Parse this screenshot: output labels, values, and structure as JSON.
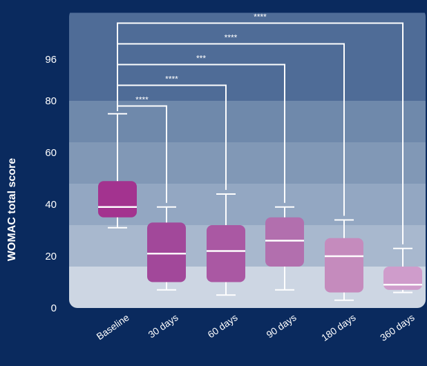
{
  "chart_data": {
    "type": "box",
    "ylabel": "WOMAC total score",
    "yticks": [
      0,
      20,
      40,
      60,
      80,
      96
    ],
    "ylim": [
      0,
      106
    ],
    "categories": [
      "Baseline",
      "30 days",
      "60 days",
      "90 days",
      "180 days",
      "360 days"
    ],
    "boxes": [
      {
        "category": "Baseline",
        "min": 31,
        "q1": 35,
        "median": 39,
        "q3": 49,
        "max": 75,
        "color": "#a3338f"
      },
      {
        "category": "30 days",
        "min": 7,
        "q1": 10,
        "median": 21,
        "q3": 33,
        "max": 39,
        "color": "#a2489a"
      },
      {
        "category": "60 days",
        "min": 5,
        "q1": 10,
        "median": 22,
        "q3": 32,
        "max": 44,
        "color": "#aa58a3"
      },
      {
        "category": "90 days",
        "min": 7,
        "q1": 16,
        "median": 26,
        "q3": 35,
        "max": 39,
        "color": "#b26fae"
      },
      {
        "category": "180 days",
        "min": 3,
        "q1": 6,
        "median": 20,
        "q3": 27,
        "max": 34,
        "color": "#c58bbd"
      },
      {
        "category": "360 days",
        "min": 6,
        "q1": 7,
        "median": 9,
        "q3": 16,
        "max": 23,
        "color": "#cf9ccb"
      }
    ],
    "comparisons": [
      {
        "from": "Baseline",
        "to": "30 days",
        "label": "****",
        "level": 78
      },
      {
        "from": "Baseline",
        "to": "60 days",
        "label": "****",
        "level": 86
      },
      {
        "from": "Baseline",
        "to": "90 days",
        "label": "***",
        "level": 94
      },
      {
        "from": "Baseline",
        "to": "180 days",
        "label": "****",
        "level": 102
      },
      {
        "from": "Baseline",
        "to": "360 days",
        "label": "****",
        "level": 110
      }
    ],
    "bands": [
      {
        "from": 0,
        "to": 16,
        "color": "#cdd6e3"
      },
      {
        "from": 16,
        "to": 32,
        "color": "#a8b8ce"
      },
      {
        "from": 32,
        "to": 48,
        "color": "#93a7c2"
      },
      {
        "from": 48,
        "to": 64,
        "color": "#8198b6"
      },
      {
        "from": 64,
        "to": 80,
        "color": "#6f89ab"
      },
      {
        "from": 80,
        "to": 114,
        "color": "#4f6c97"
      }
    ],
    "grid": false,
    "legend": "none"
  }
}
